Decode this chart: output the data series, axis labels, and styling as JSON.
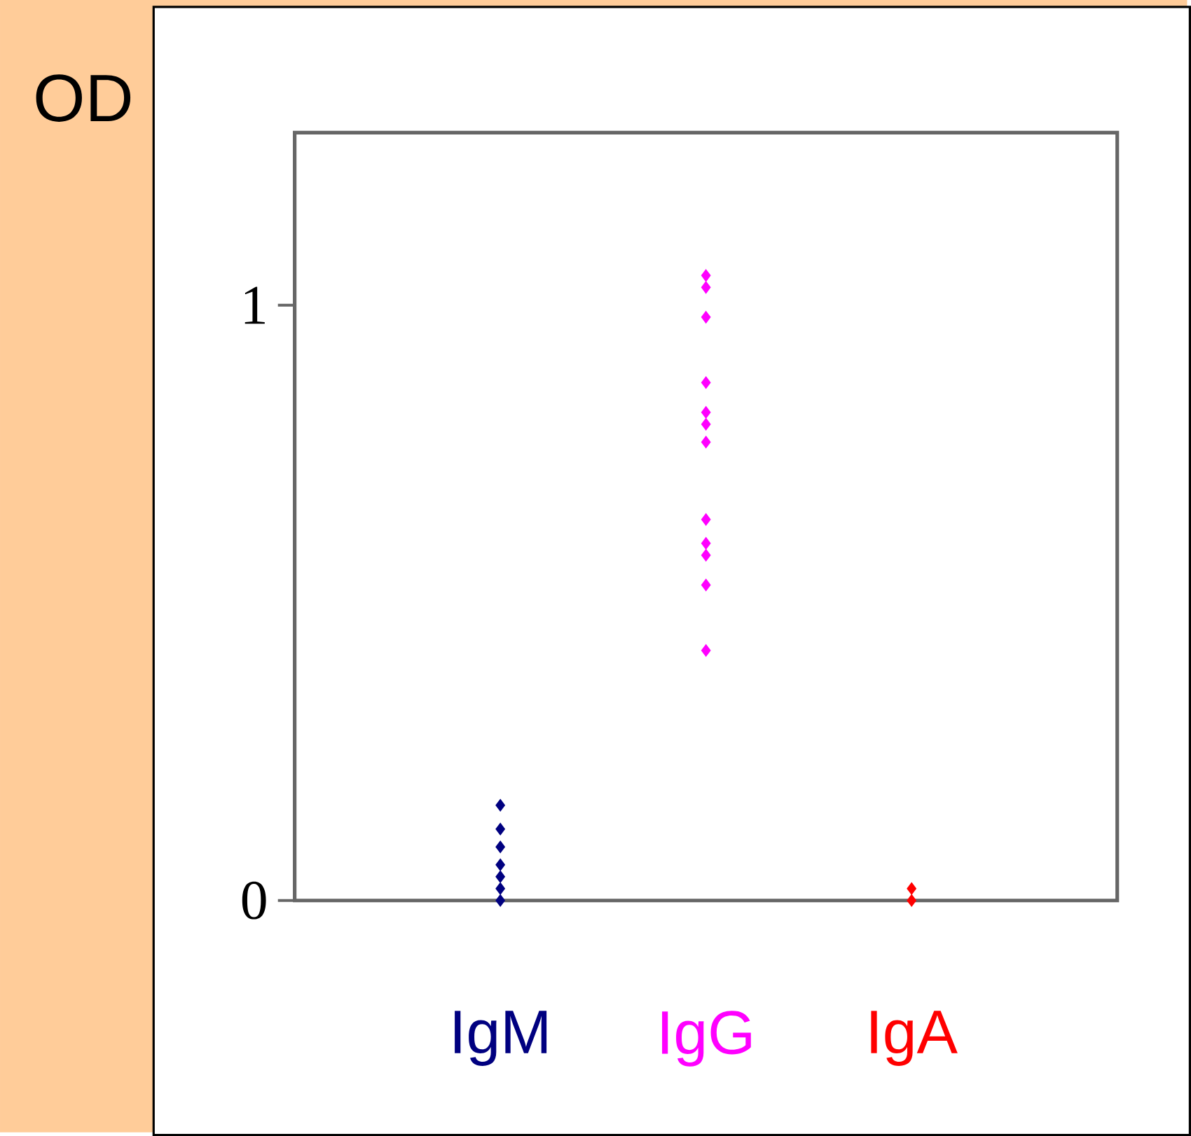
{
  "chart_data": {
    "type": "scatter",
    "ylabel": "OD",
    "categories": [
      "IgM",
      "IgG",
      "IgA"
    ],
    "ylim": [
      0,
      1.29
    ],
    "yticks": [
      0,
      1
    ],
    "grid": false,
    "marker": "diamond",
    "series": [
      {
        "color": "#000080",
        "x": [
          "IgM",
          "IgM",
          "IgM",
          "IgM",
          "IgM",
          "IgM",
          "IgM"
        ],
        "values": [
          0.16,
          0.12,
          0.09,
          0.06,
          0.04,
          0.02,
          0
        ]
      },
      {
        "color": "#ff00ff",
        "x": [
          "IgG",
          "IgG",
          "IgG",
          "IgG",
          "IgG",
          "IgG",
          "IgG",
          "IgG",
          "IgG",
          "IgG",
          "IgG",
          "IgG"
        ],
        "values": [
          1.05,
          1.03,
          0.98,
          0.87,
          0.82,
          0.8,
          0.77,
          0.64,
          0.6,
          0.58,
          0.53,
          0.42
        ]
      },
      {
        "color": "#ff0000",
        "x": [
          "IgA",
          "IgA"
        ],
        "values": [
          0.02,
          0
        ]
      }
    ]
  }
}
